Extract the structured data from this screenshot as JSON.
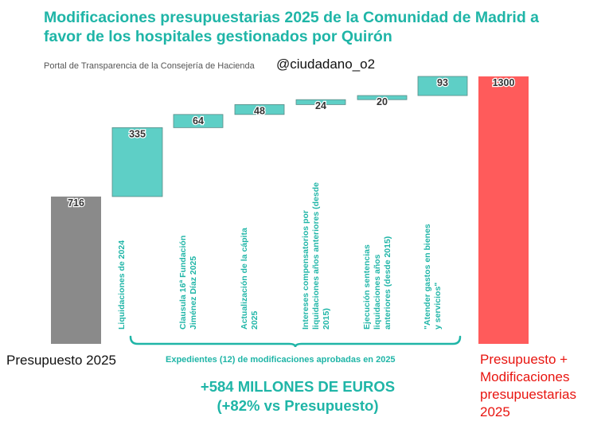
{
  "title": "Modificaciones presupuestarias 2025 de la Comunidad de Madrid a favor de los hospitales gestionados por Quirón",
  "source": "Portal de Transparencia de la Consejería de Hacienda",
  "handle": "@ciudadano_o2",
  "left_label": "Presupuesto 2025",
  "right_label": "Presupuesto + Modificaciones presupuestarias 2025",
  "bracket_label": "Expedientes (12) de modificaciones aprobadas en 2025",
  "total_label_line1": "+584 MILLONES DE EUROS",
  "total_label_line2": "(+82% vs Presupuesto)",
  "colors": {
    "base": "#8a8a8a",
    "increment": "#5ecfc6",
    "total": "#ff5b5b",
    "accent": "#1fb5a7",
    "red_text": "#e8140f"
  },
  "chart_data": {
    "type": "bar",
    "subtype": "waterfall",
    "ylim": [
      0,
      1300
    ],
    "grid": false,
    "categories": [
      "Presupuesto 2025",
      "Liquidaciones de 2024",
      "Clausula 16ª Fundación Jiménez Díaz 2025",
      "Actualización de la cápita 2025",
      "Intereses compensatorios por liquidaciones años anteriores (desde 2015)",
      "Ejecución sentencias liquidaciones años anteriores (desde 2015)",
      "\"Atender gastos en bienes y servicios\"",
      "Presupuesto + Modificaciones presupuestarias 2025"
    ],
    "values": [
      716,
      335,
      64,
      48,
      24,
      20,
      93,
      1300
    ],
    "data_labels": [
      "716",
      "335",
      "64",
      "48",
      "24",
      "20",
      "93",
      "1300"
    ],
    "kinds": [
      "total",
      "increment",
      "increment",
      "increment",
      "increment",
      "increment",
      "increment",
      "total"
    ],
    "category_label_lines": [
      [],
      [
        "Liquidaciones de 2024"
      ],
      [
        "Clausula 16ª Fundación",
        "Jiménez Díaz 2025"
      ],
      [
        "Actualización de la cápita",
        "2025"
      ],
      [
        "Intereses compensatorios por",
        "liquidaciones años anteriores (desde",
        "2015)"
      ],
      [
        "Ejecución sentencias",
        "liquidaciones años",
        "anteriores (desde 2015)"
      ],
      [
        "\"Atender gastos en bienes",
        "y servicios\""
      ],
      []
    ]
  }
}
